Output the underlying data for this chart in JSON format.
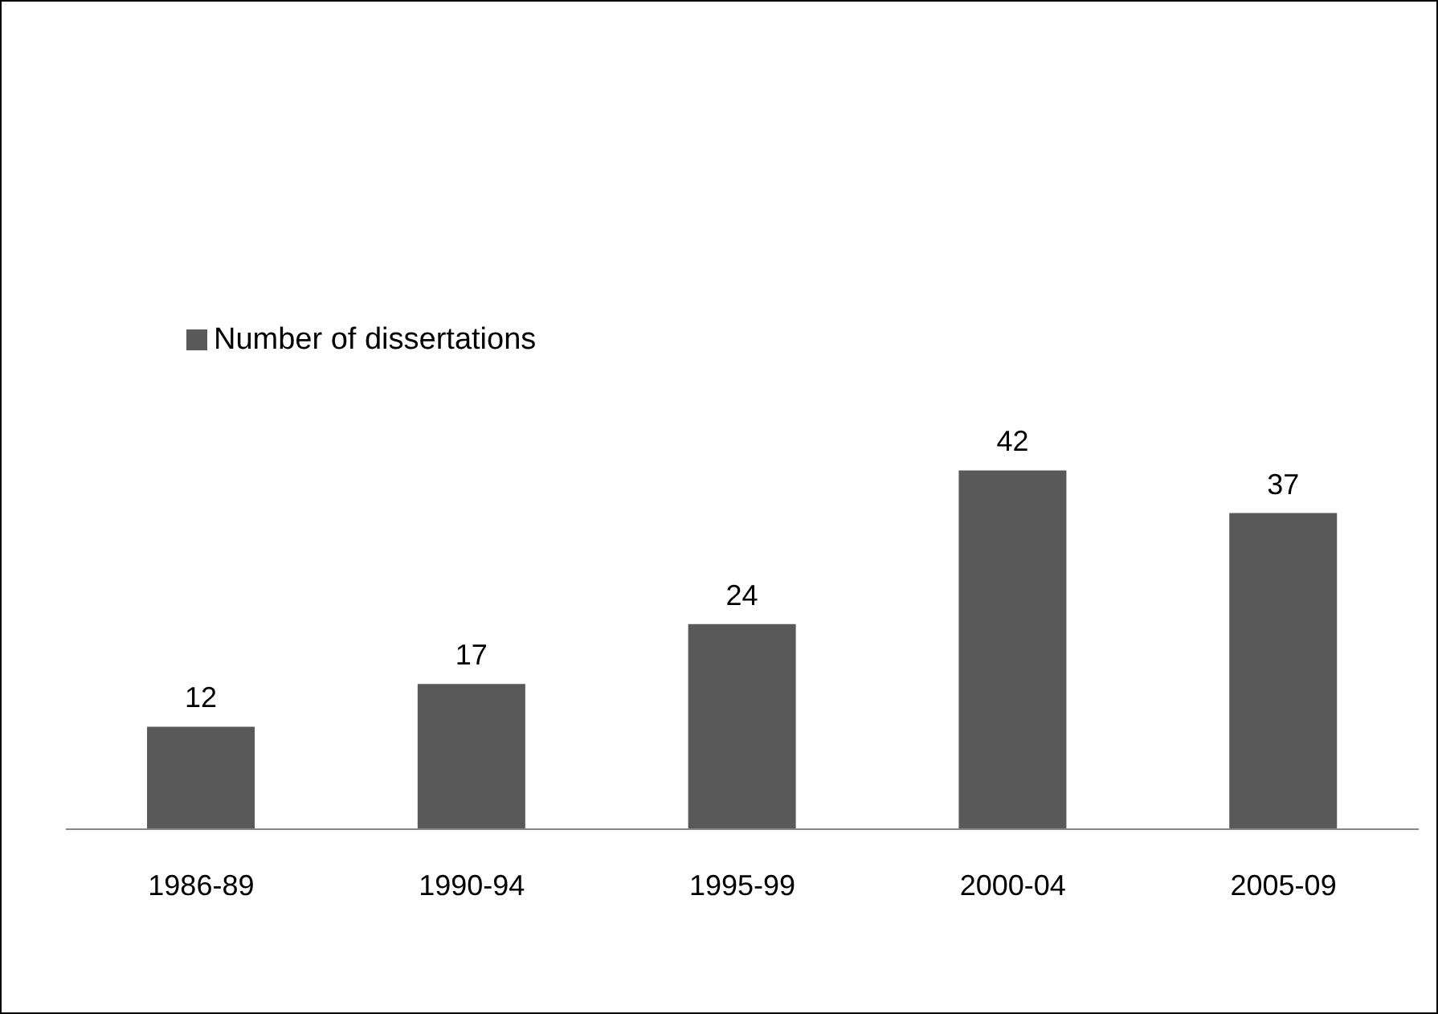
{
  "chart_data": {
    "type": "bar",
    "categories": [
      "1986-89",
      "1990-94",
      "1995-99",
      "2000-04",
      "2005-09"
    ],
    "series": [
      {
        "name": "Number of dissertations",
        "color": "#595959",
        "values": [
          12,
          17,
          24,
          42,
          37
        ]
      }
    ],
    "data_labels": true,
    "legend": "top left",
    "grid": false
  }
}
